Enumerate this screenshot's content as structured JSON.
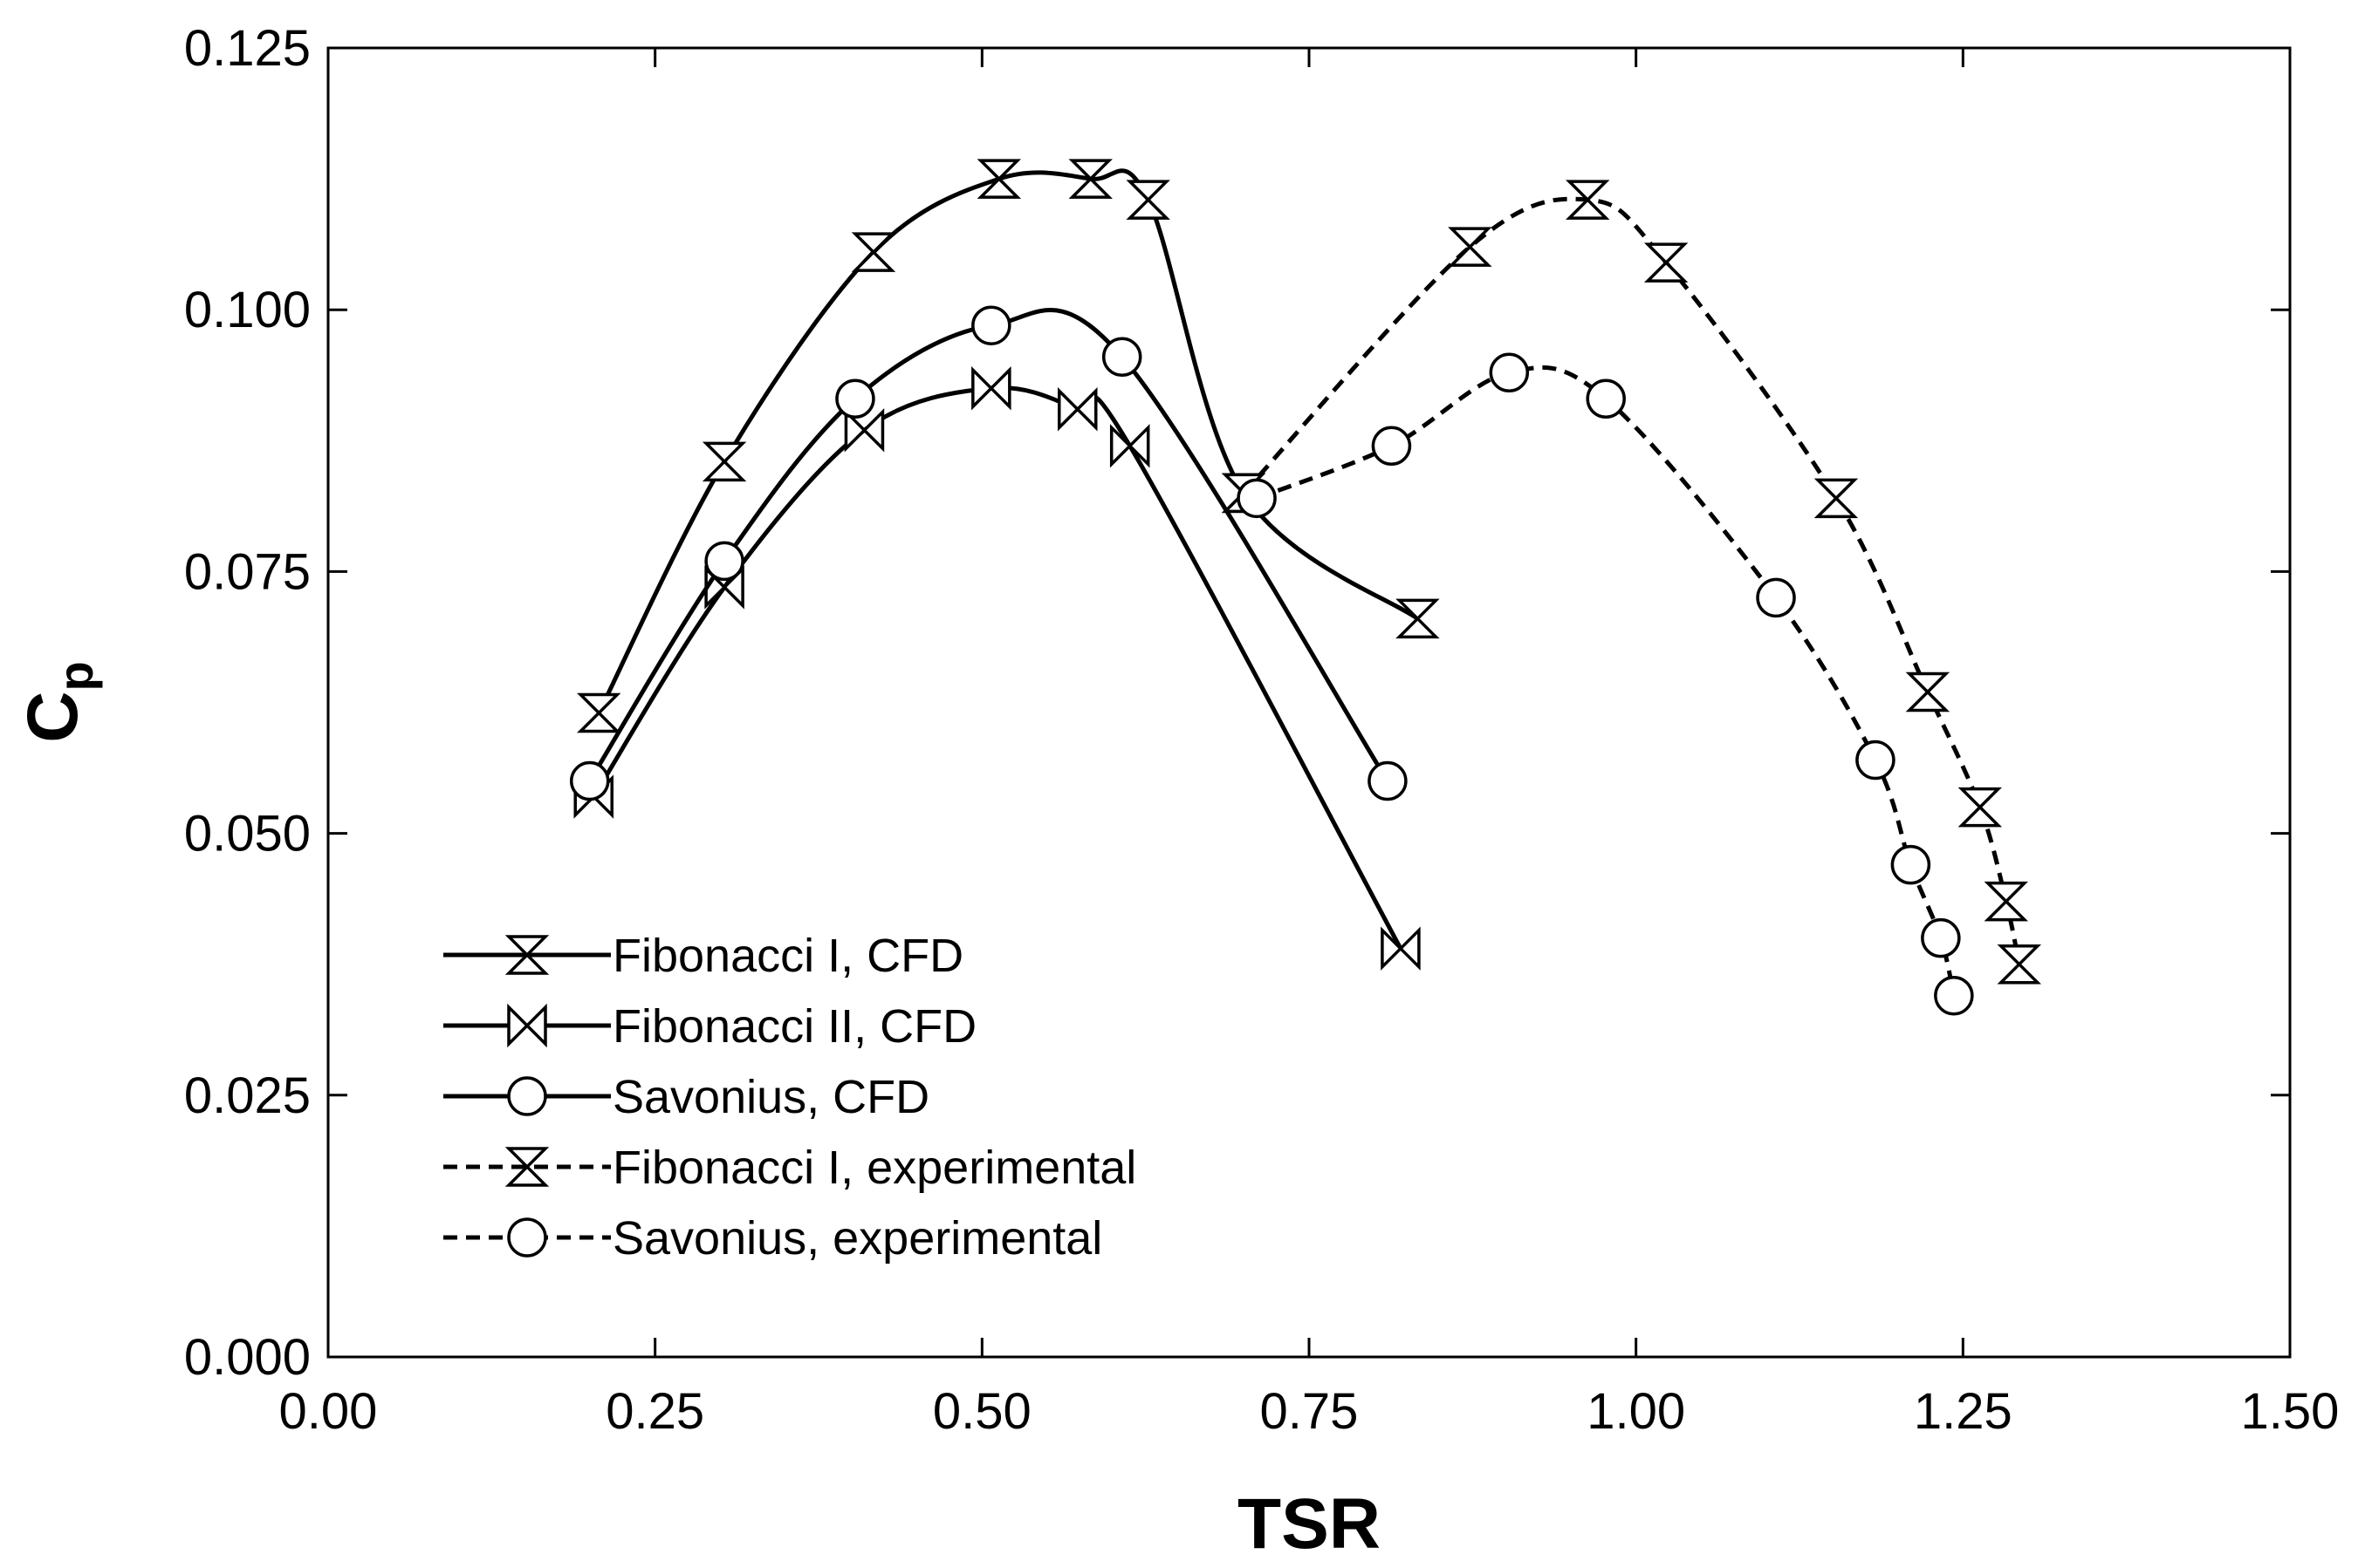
{
  "chart_data": {
    "type": "line",
    "title": "",
    "xlabel": "TSR",
    "ylabel_main": "C",
    "ylabel_sub": "p",
    "xlim": [
      0.0,
      1.5
    ],
    "ylim": [
      0.0,
      0.125
    ],
    "xticks": [
      "0.00",
      "0.25",
      "0.50",
      "0.75",
      "1.00",
      "1.25",
      "1.50"
    ],
    "yticks": [
      "0.000",
      "0.025",
      "0.050",
      "0.075",
      "0.100",
      "0.125"
    ],
    "grid": false,
    "legend_position": "lower-left",
    "series": [
      {
        "name": "Fibonacci I, CFD",
        "marker": "hourglass",
        "line_style": "solid",
        "x": [
          0.207,
          0.303,
          0.417,
          0.513,
          0.583,
          0.627,
          0.7,
          0.833
        ],
        "y": [
          0.0615,
          0.0855,
          0.1055,
          0.1125,
          0.1125,
          0.1105,
          0.0825,
          0.0705
        ]
      },
      {
        "name": "Fibonacci II, CFD",
        "marker": "bowtie",
        "line_style": "solid",
        "x": [
          0.203,
          0.303,
          0.41,
          0.507,
          0.573,
          0.613,
          0.82
        ],
        "y": [
          0.0535,
          0.0735,
          0.0885,
          0.0925,
          0.0905,
          0.087,
          0.039
        ]
      },
      {
        "name": "Savonius, CFD",
        "marker": "circle",
        "line_style": "solid",
        "x": [
          0.2,
          0.303,
          0.403,
          0.507,
          0.607,
          0.81
        ],
        "y": [
          0.055,
          0.076,
          0.0915,
          0.0985,
          0.0955,
          0.055
        ]
      },
      {
        "name": "Fibonacci I, experimental",
        "marker": "hourglass",
        "line_style": "dashed",
        "x": [
          0.7,
          0.873,
          0.963,
          1.023,
          1.153,
          1.223,
          1.263,
          1.283,
          1.293
        ],
        "y": [
          0.0825,
          0.106,
          0.1105,
          0.1045,
          0.082,
          0.0635,
          0.0525,
          0.0435,
          0.0375
        ]
      },
      {
        "name": "Savonius, experimental",
        "marker": "circle",
        "line_style": "dashed",
        "x": [
          0.71,
          0.813,
          0.903,
          0.977,
          1.107,
          1.183,
          1.21,
          1.233,
          1.243
        ],
        "y": [
          0.082,
          0.087,
          0.094,
          0.0915,
          0.0725,
          0.057,
          0.047,
          0.04,
          0.0345
        ]
      }
    ]
  }
}
